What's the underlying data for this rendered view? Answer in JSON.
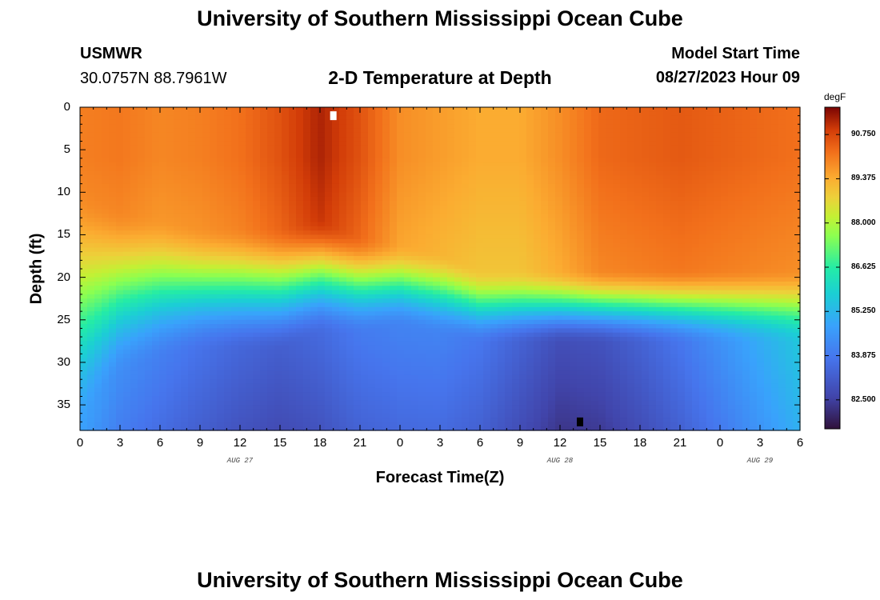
{
  "header": {
    "title": "University of Southern Mississippi Ocean Cube",
    "station": "USMWR",
    "coords": "30.0757N  88.7961W",
    "subtitle": "2-D Temperature at Depth",
    "model_label": "Model Start Time",
    "model_time": "08/27/2023 Hour 09"
  },
  "footer": {
    "title": "University of Southern Mississippi Ocean Cube"
  },
  "chart_data": {
    "type": "heatmap",
    "title": "2-D Temperature at Depth",
    "xlabel": "Forecast Time(Z)",
    "ylabel": "Depth (ft)",
    "x_hours_range": [
      0,
      54
    ],
    "y_range": [
      0,
      38
    ],
    "x_ticks": [
      "0",
      "3",
      "6",
      "9",
      "12",
      "15",
      "18",
      "21",
      "0",
      "3",
      "6",
      "9",
      "12",
      "15",
      "18",
      "21",
      "0",
      "3",
      "6"
    ],
    "y_ticks": [
      "0",
      "5",
      "10",
      "15",
      "20",
      "25",
      "30",
      "35"
    ],
    "date_labels": [
      {
        "text": "AUG 27",
        "hour": 12
      },
      {
        "text": "AUG 28",
        "hour": 36
      },
      {
        "text": "AUG 29",
        "hour": 51
      }
    ],
    "colorbar": {
      "unit": "degF",
      "min": 81.6,
      "max": 91.6,
      "ticks": [
        "90.750",
        "89.375",
        "88.000",
        "86.625",
        "85.250",
        "83.875",
        "82.500"
      ]
    },
    "markers": [
      {
        "type": "max",
        "hour": 19,
        "depth": 1,
        "color": "#ffffff"
      },
      {
        "type": "min",
        "hour": 37.5,
        "depth": 37,
        "color": "#000000"
      }
    ],
    "thermocline": [
      {
        "hour": 0,
        "top": 10,
        "bottom": 38,
        "surface": 90.0,
        "bottom_temp": 84.8
      },
      {
        "hour": 3,
        "top": 12,
        "bottom": 32,
        "surface": 90.1,
        "bottom_temp": 84.3
      },
      {
        "hour": 6,
        "top": 13,
        "bottom": 30,
        "surface": 89.9,
        "bottom_temp": 84.0
      },
      {
        "hour": 9,
        "top": 14,
        "bottom": 29,
        "surface": 90.0,
        "bottom_temp": 83.7
      },
      {
        "hour": 12,
        "top": 14,
        "bottom": 29,
        "surface": 90.2,
        "bottom_temp": 83.4
      },
      {
        "hour": 15,
        "top": 14,
        "bottom": 29,
        "surface": 90.6,
        "bottom_temp": 83.2
      },
      {
        "hour": 18,
        "top": 13,
        "bottom": 27,
        "surface": 91.2,
        "bottom_temp": 83.5
      },
      {
        "hour": 21,
        "top": 15,
        "bottom": 27,
        "surface": 90.6,
        "bottom_temp": 83.9
      },
      {
        "hour": 24,
        "top": 16,
        "bottom": 26,
        "surface": 89.8,
        "bottom_temp": 84.1
      },
      {
        "hour": 27,
        "top": 17,
        "bottom": 27,
        "surface": 89.6,
        "bottom_temp": 84.1
      },
      {
        "hour": 30,
        "top": 19,
        "bottom": 28,
        "surface": 89.4,
        "bottom_temp": 83.8
      },
      {
        "hour": 33,
        "top": 19,
        "bottom": 28,
        "surface": 89.4,
        "bottom_temp": 83.3
      },
      {
        "hour": 36,
        "top": 19,
        "bottom": 28,
        "surface": 89.8,
        "bottom_temp": 82.8
      },
      {
        "hour": 39,
        "top": 19,
        "bottom": 28,
        "surface": 90.3,
        "bottom_temp": 82.9
      },
      {
        "hour": 42,
        "top": 19,
        "bottom": 28,
        "surface": 90.4,
        "bottom_temp": 83.3
      },
      {
        "hour": 45,
        "top": 19,
        "bottom": 28,
        "surface": 90.5,
        "bottom_temp": 83.8
      },
      {
        "hour": 48,
        "top": 19,
        "bottom": 28,
        "surface": 90.4,
        "bottom_temp": 84.4
      },
      {
        "hour": 51,
        "top": 19,
        "bottom": 28,
        "surface": 90.3,
        "bottom_temp": 85.0
      },
      {
        "hour": 54,
        "top": 19,
        "bottom": 28,
        "surface": 90.2,
        "bottom_temp": 85.6
      }
    ]
  }
}
